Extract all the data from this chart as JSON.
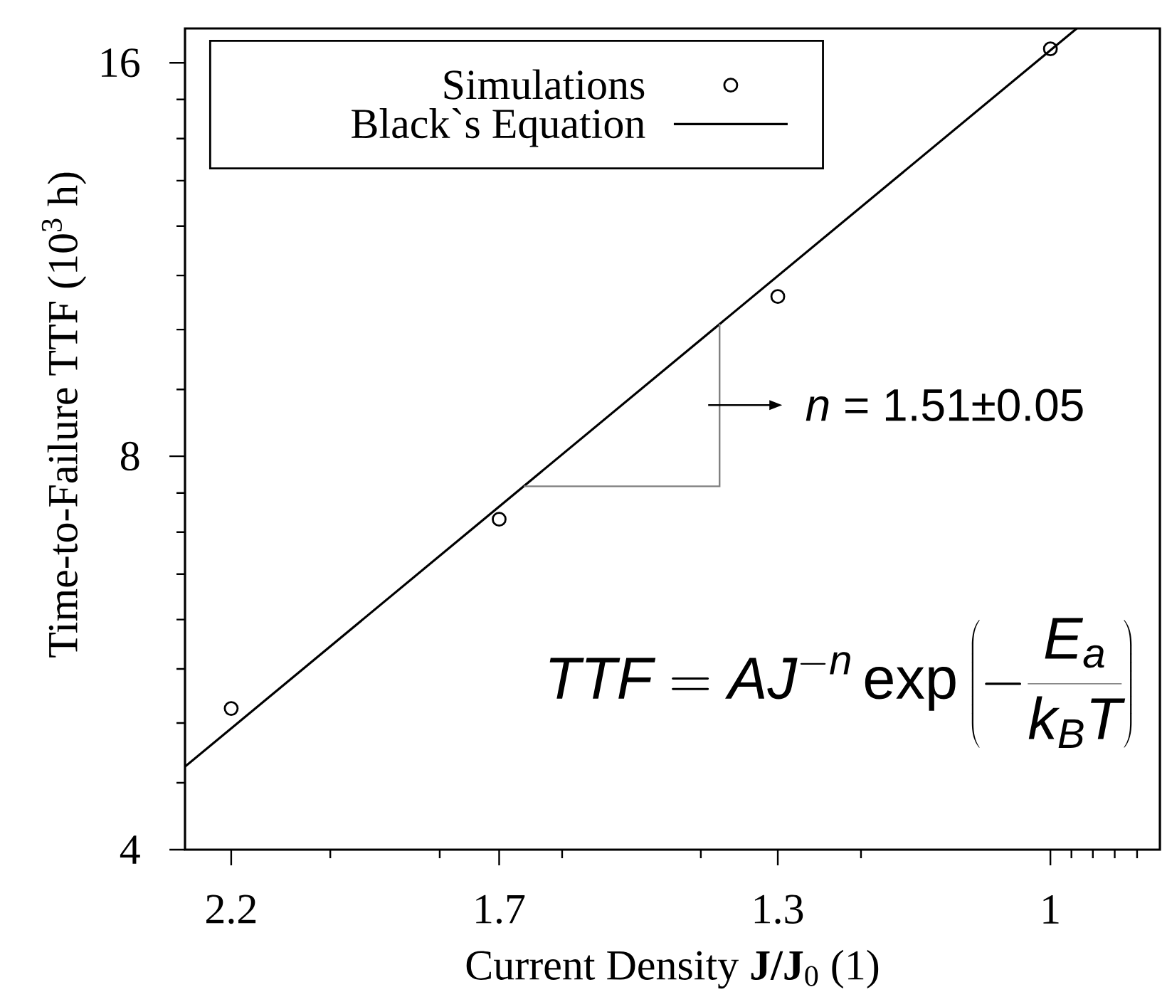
{
  "chart_data": {
    "type": "scatter",
    "xlabel": "Current Density **J/J**$_{0}$ (1)",
    "ylabel": "Time-to-Failure TTF (10$^{3}$ h)",
    "log": "xy",
    "xlim": [
      2.3,
      0.9
    ],
    "xticks": [
      2.2,
      {
        "value": 2.0,
        "label": null
      },
      {
        "value": 1.8,
        "label": null
      },
      1.7,
      {
        "value": 1.6,
        "label": null
      },
      {
        "value": 1.4,
        "label": null
      },
      1.3,
      {
        "value": 1.2,
        "label": null
      },
      1,
      {
        "value": 0.98,
        "label": null
      },
      {
        "value": 0.96,
        "label": null
      },
      {
        "value": 0.94,
        "label": null
      },
      {
        "value": 0.92,
        "label": null
      }
    ],
    "ylim": [
      4,
      17
    ],
    "yticks": [
      4,
      {
        "value": 4.5,
        "label": null
      },
      {
        "value": 5,
        "label": null
      },
      {
        "value": 5.5,
        "label": null
      },
      {
        "value": 6,
        "label": null
      },
      {
        "value": 6.5,
        "label": null
      },
      {
        "value": 7,
        "label": null
      },
      {
        "value": 7.5,
        "label": null
      },
      8,
      {
        "value": 9,
        "label": null
      },
      {
        "value": 10,
        "label": null
      },
      {
        "value": 11,
        "label": null
      },
      {
        "value": 12,
        "label": null
      },
      {
        "value": 13,
        "label": null
      },
      {
        "value": 14,
        "label": null
      },
      {
        "value": 15,
        "label": null
      },
      16
    ],
    "legend": "top left",
    "series": [
      {
        "name": "Simulations",
        "marker": "circle",
        "color": "#000000",
        "x": [
          2.2,
          1.7,
          1.3,
          1
        ],
        "values": [
          5.13,
          7.16,
          10.6,
          16.4
        ]
      },
      {
        "name": "Black`s Equation",
        "type": "line",
        "marker": "none",
        "line_style": "solid",
        "color": "#000000",
        "x": [
          2.3,
          0.975
        ],
        "values": [
          4.63,
          17
        ]
      }
    ],
    "annotations": [
      {
        "text": "*n* = 1.51±0.05",
        "x": 1.375,
        "y": 10.1
      },
      "TTF = AJ^{-n} \\exp\\left(-\\frac{E_a}{k_B T}\\right)"
    ]
  }
}
